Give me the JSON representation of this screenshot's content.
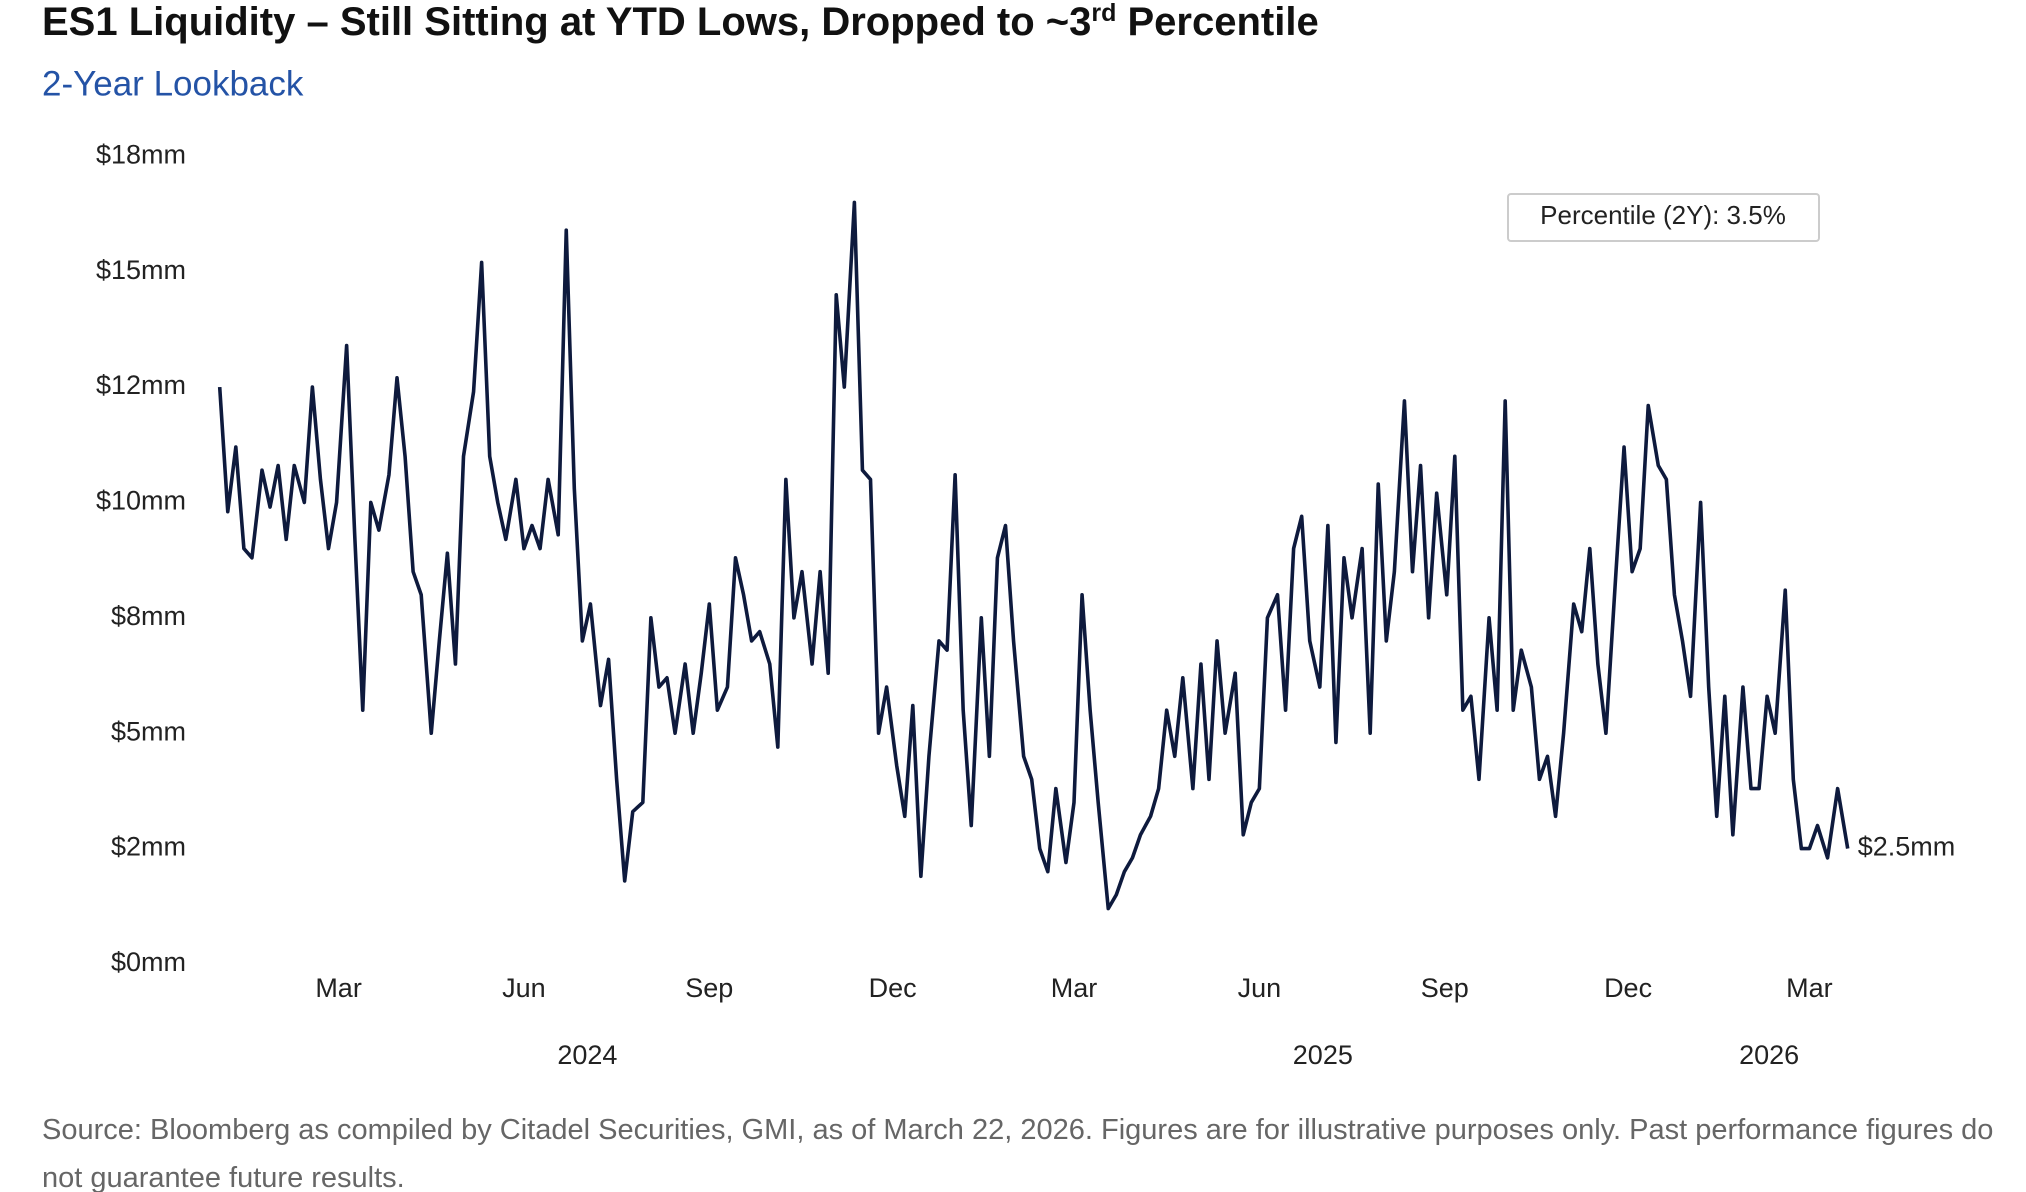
{
  "chart_data": {
    "type": "line",
    "title_parts": [
      "ES1 Liquidity – Still Sitting at YTD Lows, Dropped to ~3",
      "rd",
      " Percentile"
    ],
    "subtitle": "2-Year Lookback",
    "annotation": "Percentile (2Y): 3.5%",
    "end_label": "$2.5mm",
    "source": "Source: Bloomberg as compiled by Citadel Securities, GMI, as of March 22, 2026. Figures are for illustrative purposes only. Past performance figures do not guarantee future results.",
    "color": "#0e1a3d",
    "xlim": [
      "2024-01-02",
      "2026-03-20"
    ],
    "ylim": [
      0,
      17.5
    ],
    "yticks": [
      {
        "value": 0,
        "label": "$0mm"
      },
      {
        "value": 2.5,
        "label": "$2mm"
      },
      {
        "value": 5,
        "label": "$5mm"
      },
      {
        "value": 7.5,
        "label": "$8mm"
      },
      {
        "value": 10,
        "label": "$10mm"
      },
      {
        "value": 12.5,
        "label": "$12mm"
      },
      {
        "value": 15,
        "label": "$15mm"
      },
      {
        "value": 17.5,
        "label": "$18mm"
      }
    ],
    "xticks": [
      {
        "value": "2024-03",
        "label": "Mar"
      },
      {
        "value": "2024-06",
        "label": "Jun"
      },
      {
        "value": "2024-09",
        "label": "Sep"
      },
      {
        "value": "2024-12",
        "label": "Dec"
      },
      {
        "value": "2025-03",
        "label": "Mar"
      },
      {
        "value": "2025-06",
        "label": "Jun"
      },
      {
        "value": "2025-09",
        "label": "Sep"
      },
      {
        "value": "2025-12",
        "label": "Dec"
      },
      {
        "value": "2026-03",
        "label": "Mar"
      }
    ],
    "year_ticks": [
      "2024",
      "2025",
      "2026"
    ],
    "x": [
      "2024-01-02",
      "2024-01-06",
      "2024-01-10",
      "2024-01-14",
      "2024-01-18",
      "2024-01-23",
      "2024-01-27",
      "2024-01-31",
      "2024-02-04",
      "2024-02-08",
      "2024-02-13",
      "2024-02-17",
      "2024-02-21",
      "2024-02-25",
      "2024-02-29",
      "2024-03-05",
      "2024-03-09",
      "2024-03-13",
      "2024-03-17",
      "2024-03-21",
      "2024-03-26",
      "2024-03-30",
      "2024-04-03",
      "2024-04-07",
      "2024-04-11",
      "2024-04-16",
      "2024-04-20",
      "2024-04-24",
      "2024-04-28",
      "2024-05-02",
      "2024-05-07",
      "2024-05-11",
      "2024-05-15",
      "2024-05-19",
      "2024-05-23",
      "2024-05-28",
      "2024-06-01",
      "2024-06-05",
      "2024-06-09",
      "2024-06-13",
      "2024-06-18",
      "2024-06-22",
      "2024-06-26",
      "2024-06-30",
      "2024-07-04",
      "2024-07-09",
      "2024-07-13",
      "2024-07-17",
      "2024-07-21",
      "2024-07-25",
      "2024-07-30",
      "2024-08-03",
      "2024-08-07",
      "2024-08-11",
      "2024-08-15",
      "2024-08-20",
      "2024-08-24",
      "2024-08-28",
      "2024-09-01",
      "2024-09-05",
      "2024-09-10",
      "2024-09-14",
      "2024-09-18",
      "2024-09-22",
      "2024-09-26",
      "2024-10-01",
      "2024-10-05",
      "2024-10-09",
      "2024-10-13",
      "2024-10-17",
      "2024-10-22",
      "2024-10-26",
      "2024-10-30",
      "2024-11-03",
      "2024-11-07",
      "2024-11-12",
      "2024-11-16",
      "2024-11-20",
      "2024-11-24",
      "2024-11-28",
      "2024-12-03",
      "2024-12-07",
      "2024-12-11",
      "2024-12-15",
      "2024-12-19",
      "2024-12-24",
      "2024-12-28",
      "2025-01-01",
      "2025-01-05",
      "2025-01-09",
      "2025-01-14",
      "2025-01-18",
      "2025-01-22",
      "2025-01-26",
      "2025-01-30",
      "2025-02-04",
      "2025-02-08",
      "2025-02-12",
      "2025-02-16",
      "2025-02-20",
      "2025-02-25",
      "2025-03-01",
      "2025-03-05",
      "2025-03-09",
      "2025-03-13",
      "2025-03-18",
      "2025-03-22",
      "2025-03-26",
      "2025-03-30",
      "2025-04-03",
      "2025-04-08",
      "2025-04-12",
      "2025-04-16",
      "2025-04-20",
      "2025-04-24",
      "2025-04-29",
      "2025-05-03",
      "2025-05-07",
      "2025-05-11",
      "2025-05-15",
      "2025-05-20",
      "2025-05-24",
      "2025-05-28",
      "2025-06-01",
      "2025-06-05",
      "2025-06-10",
      "2025-06-14",
      "2025-06-18",
      "2025-06-22",
      "2025-06-26",
      "2025-07-01",
      "2025-07-05",
      "2025-07-09",
      "2025-07-13",
      "2025-07-17",
      "2025-07-22",
      "2025-07-26",
      "2025-07-30",
      "2025-08-03",
      "2025-08-07",
      "2025-08-12",
      "2025-08-16",
      "2025-08-20",
      "2025-08-24",
      "2025-08-28",
      "2025-09-02",
      "2025-09-06",
      "2025-09-10",
      "2025-09-14",
      "2025-09-18",
      "2025-09-23",
      "2025-09-27",
      "2025-10-01",
      "2025-10-05",
      "2025-10-09",
      "2025-10-14",
      "2025-10-18",
      "2025-10-22",
      "2025-10-26",
      "2025-10-30",
      "2025-11-04",
      "2025-11-08",
      "2025-11-12",
      "2025-11-16",
      "2025-11-20",
      "2025-11-25",
      "2025-11-29",
      "2025-12-03",
      "2025-12-07",
      "2025-12-11",
      "2025-12-16",
      "2025-12-20",
      "2025-12-24",
      "2025-12-28",
      "2026-01-01",
      "2026-01-06",
      "2026-01-10",
      "2026-01-14",
      "2026-01-18",
      "2026-01-22",
      "2026-01-27",
      "2026-01-31",
      "2026-02-04",
      "2026-02-08",
      "2026-02-12",
      "2026-02-17",
      "2026-02-21",
      "2026-02-25",
      "2026-03-01",
      "2026-03-05",
      "2026-03-10",
      "2026-03-15",
      "2026-03-20"
    ],
    "values": [
      12.5,
      9.8,
      11.2,
      9.0,
      8.8,
      10.7,
      9.9,
      10.8,
      9.2,
      10.8,
      10.0,
      12.5,
      10.5,
      9.0,
      10.0,
      13.4,
      9.3,
      5.5,
      10.0,
      9.4,
      10.6,
      12.7,
      11.0,
      8.5,
      8.0,
      5.0,
      7.0,
      8.9,
      6.5,
      11.0,
      12.4,
      15.2,
      11.0,
      10.0,
      9.2,
      10.5,
      9.0,
      9.5,
      9.0,
      10.5,
      9.3,
      15.9,
      10.3,
      7.0,
      7.8,
      5.6,
      6.6,
      4.0,
      1.8,
      3.3,
      3.5,
      7.5,
      6.0,
      6.2,
      5.0,
      6.5,
      5.0,
      6.3,
      7.8,
      5.5,
      6.0,
      8.8,
      8.0,
      7.0,
      7.2,
      6.5,
      4.7,
      10.5,
      7.5,
      8.5,
      6.5,
      8.5,
      6.3,
      14.5,
      12.5,
      16.5,
      10.7,
      10.5,
      5.0,
      6.0,
      4.3,
      3.2,
      5.6,
      1.9,
      4.5,
      7.0,
      6.8,
      10.6,
      5.5,
      3.0,
      7.5,
      4.5,
      8.8,
      9.5,
      7.0,
      4.5,
      4.0,
      2.5,
      2.0,
      3.8,
      2.2,
      3.5,
      8.0,
      5.5,
      3.5,
      1.2,
      1.5,
      2.0,
      2.3,
      2.8,
      3.2,
      3.8,
      5.5,
      4.5,
      6.2,
      3.8,
      6.5,
      4.0,
      7.0,
      5.0,
      6.3,
      2.8,
      3.5,
      3.8,
      7.5,
      8.0,
      5.5,
      9.0,
      9.7,
      7.0,
      6.0,
      9.5,
      4.8,
      8.8,
      7.5,
      9.0,
      5.0,
      10.4,
      7.0,
      8.5,
      12.2,
      8.5,
      10.8,
      7.5,
      10.2,
      8.0,
      11.0,
      5.5,
      5.8,
      4.0,
      7.5,
      5.5,
      12.2,
      5.5,
      6.8,
      6.0,
      4.0,
      4.5,
      3.2,
      5.0,
      7.8,
      7.2,
      9.0,
      6.5,
      5.0,
      8.5,
      11.2,
      8.5,
      9.0,
      12.1,
      10.8,
      10.5,
      8.0,
      7.0,
      5.8,
      10.0,
      6.0,
      3.2,
      5.8,
      2.8,
      6.0,
      3.8,
      3.8,
      5.8,
      5.0,
      8.1,
      4.0,
      2.5,
      2.5,
      3.0,
      2.3,
      3.8,
      2.5
    ]
  }
}
